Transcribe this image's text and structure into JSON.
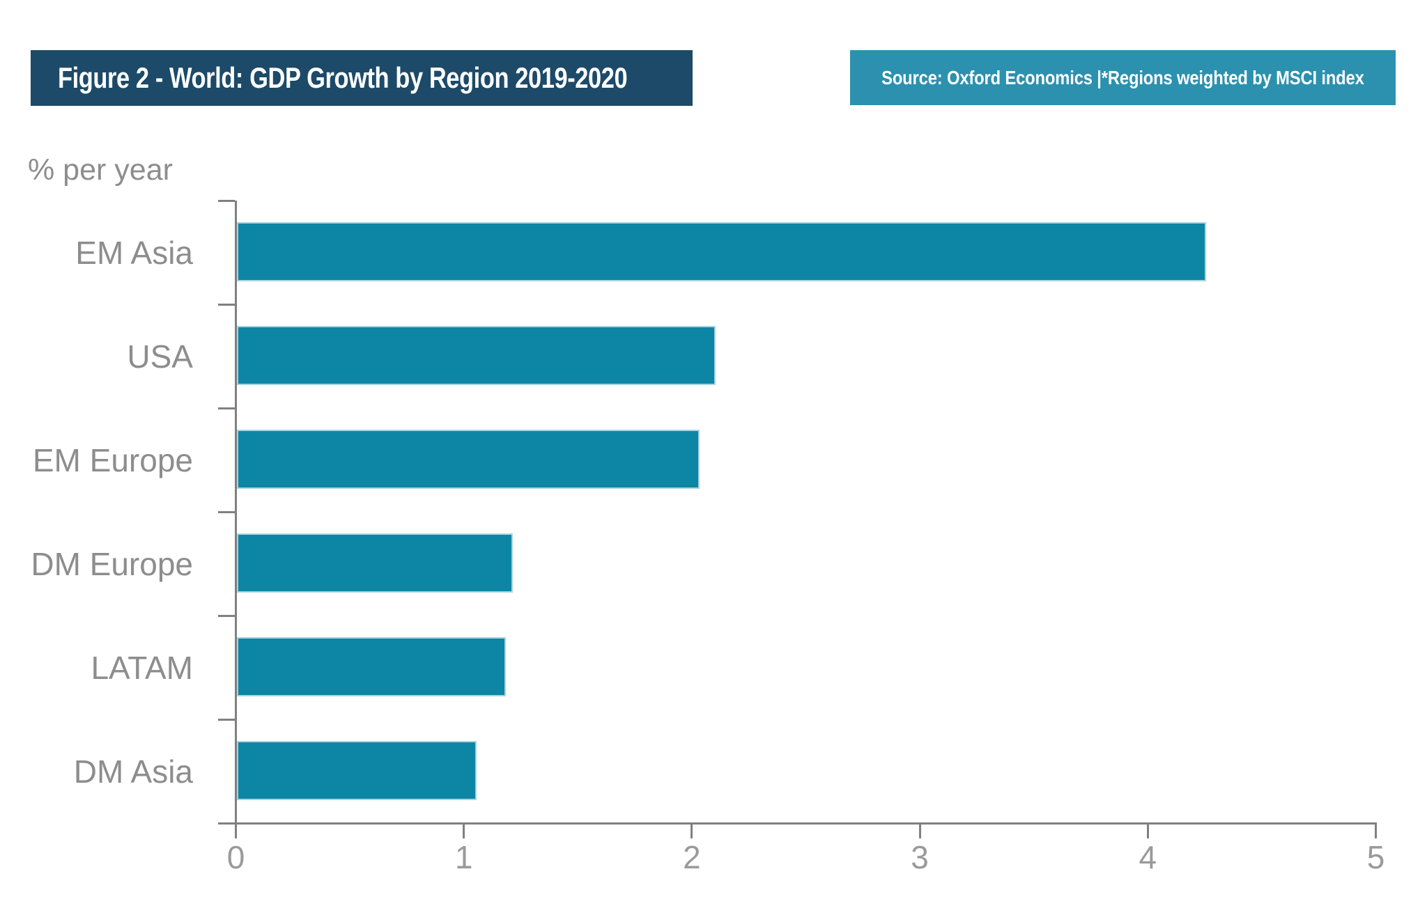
{
  "header": {
    "title": "Figure 2 - World: GDP Growth by Region 2019-2020",
    "source": "Source: Oxford Economics |*Regions weighted by MSCI index"
  },
  "chart_data": {
    "type": "bar",
    "orientation": "horizontal",
    "title": "Figure 2 - World: GDP Growth by Region 2019-2020",
    "unit_label": "% per year",
    "categories": [
      "EM Asia",
      "USA",
      "EM Europe",
      "DM Europe",
      "LATAM",
      "DM Asia"
    ],
    "values": [
      4.25,
      2.1,
      2.03,
      1.21,
      1.18,
      1.05
    ],
    "xlim": [
      0,
      5
    ],
    "xticks": [
      0,
      1,
      2,
      3,
      4,
      5
    ],
    "grid": false,
    "legend": null,
    "source": "Source: Oxford Economics |*Regions weighted by MSCI index"
  },
  "colors": {
    "title_bg": "#1d4a68",
    "source_bg": "#2b91ae",
    "header_text": "#ffffff",
    "bar": "#0d86a5",
    "bar_edge": "#a9d5e2",
    "axis": "#808080",
    "category_label": "#8d8d8d",
    "tick_label": "#9a9a9a",
    "unit_label": "#8d8d8d"
  }
}
